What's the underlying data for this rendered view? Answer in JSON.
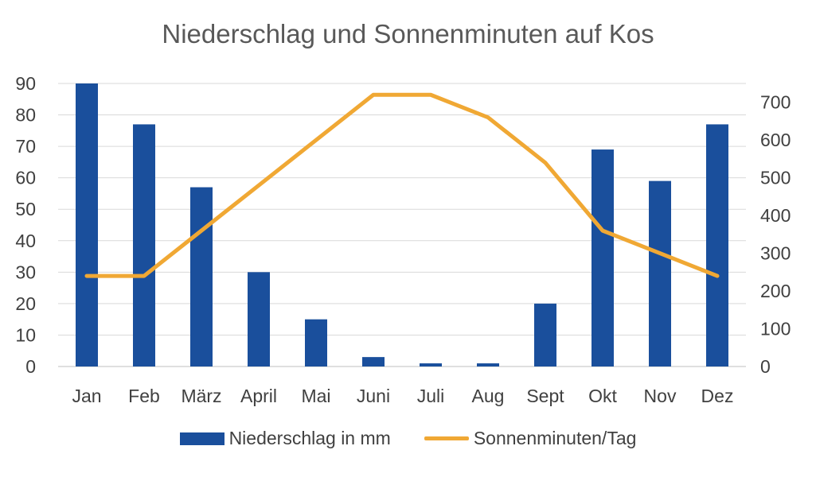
{
  "chart_data": {
    "type": "bar",
    "title": "Niederschlag und Sonnenminuten auf Kos",
    "categories": [
      "Jan",
      "Feb",
      "März",
      "April",
      "Mai",
      "Juni",
      "Juli",
      "Aug",
      "Sept",
      "Okt",
      "Nov",
      "Dez"
    ],
    "series": [
      {
        "name": "Niederschlag in mm",
        "type": "bar",
        "axis": "left",
        "color": "#1a4f9c",
        "values": [
          90,
          77,
          57,
          30,
          15,
          3,
          1,
          1,
          20,
          69,
          59,
          77
        ]
      },
      {
        "name": "Sonnenminuten/Tag",
        "type": "line",
        "axis": "right",
        "color": "#f0a834",
        "values": [
          240,
          240,
          360,
          480,
          600,
          720,
          720,
          660,
          540,
          360,
          300,
          240
        ]
      }
    ],
    "y_left": {
      "ylim": [
        0,
        90
      ],
      "ticks": [
        0,
        10,
        20,
        30,
        40,
        50,
        60,
        70,
        80,
        90
      ]
    },
    "y_right": {
      "ylim": [
        0,
        750
      ],
      "ticks": [
        0,
        100,
        200,
        300,
        400,
        500,
        600,
        700
      ]
    },
    "grid": true,
    "legend": "bottom"
  }
}
